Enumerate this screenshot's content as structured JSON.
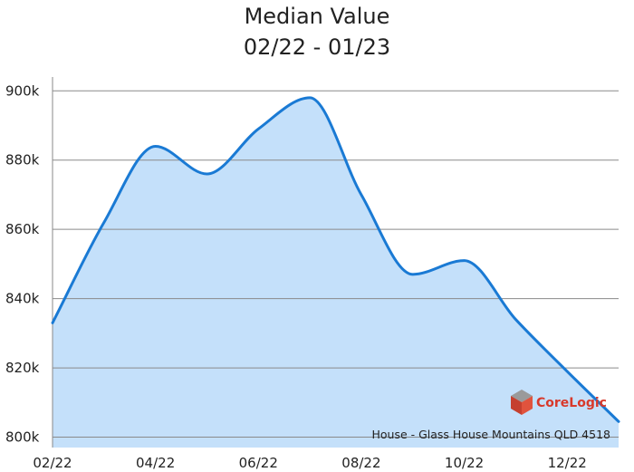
{
  "chart_data": {
    "type": "area",
    "title": "Median Value",
    "subtitle": "02/22 - 01/23",
    "x": [
      "02/22",
      "03/22",
      "04/22",
      "05/22",
      "06/22",
      "07/22",
      "08/22",
      "09/22",
      "10/22",
      "11/22",
      "12/22",
      "01/23"
    ],
    "x_tick_labels": [
      "02/22",
      "04/22",
      "06/22",
      "08/22",
      "10/22",
      "12/22"
    ],
    "series": [
      {
        "values": [
          833,
          862,
          884,
          876,
          889,
          898,
          870,
          847,
          851,
          834,
          819,
          804.5
        ]
      }
    ],
    "ylim": [
      797,
      904
    ],
    "y_ticks": [
      800,
      820,
      840,
      860,
      880,
      900
    ],
    "y_tick_labels": [
      "800k",
      "820k",
      "840k",
      "860k",
      "880k",
      "900k"
    ],
    "grid": true,
    "source_label": "House - Glass House Mountains QLD 4518",
    "logo_text": "CoreLogic",
    "colors": {
      "line": "#1a7ad4",
      "fill": "#c4e0fa",
      "grid": "#8a8a8a",
      "logo_text": "#d8392b",
      "logo_cube_top": "#9a9a9a",
      "logo_cube_left": "#c5402f",
      "logo_cube_right": "#e0533d"
    }
  }
}
